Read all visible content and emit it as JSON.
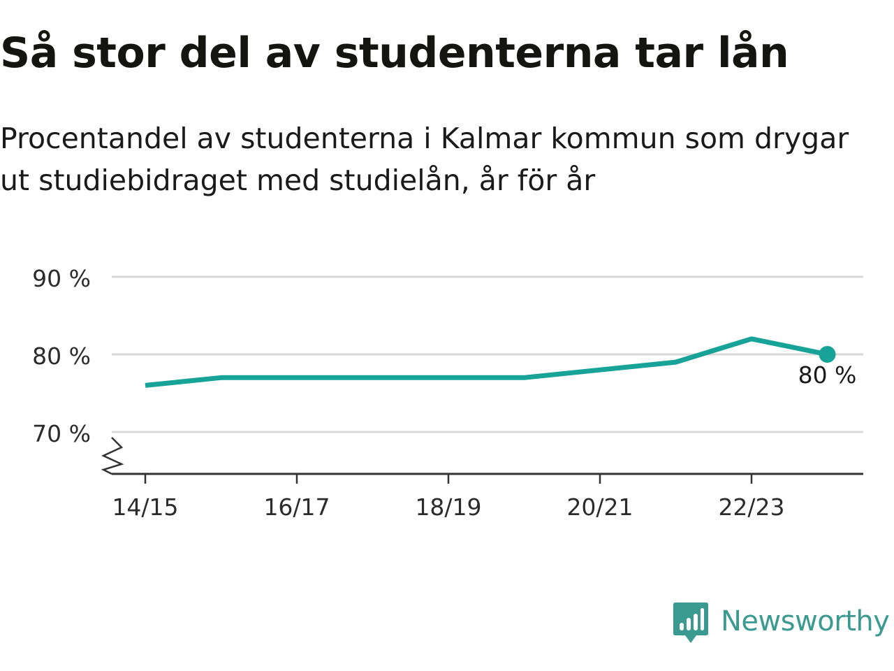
{
  "header": {
    "title": "Så stor del av studenterna tar lån",
    "subtitle": "Procentandel av studenterna i Kalmar kommun som drygar ut studiebidraget med studielån, år för år"
  },
  "chart_data": {
    "type": "line",
    "title": "Så stor del av studenterna tar lån",
    "subtitle": "Procentandel av studenterna i Kalmar kommun som drygar ut studiebidraget med studielån, år för år",
    "x": [
      "14/15",
      "15/16",
      "16/17",
      "17/18",
      "18/19",
      "19/20",
      "20/21",
      "21/22",
      "22/23",
      "23/24"
    ],
    "series": [
      {
        "values": [
          76,
          77,
          77,
          77,
          77,
          77,
          78,
          79,
          82,
          80
        ]
      }
    ],
    "x_tick_labels": [
      "14/15",
      "16/17",
      "18/19",
      "20/21",
      "22/23"
    ],
    "y_ticks": [
      70,
      80,
      90
    ],
    "y_tick_labels": [
      "70 %",
      "80 %",
      "90 %"
    ],
    "ylim": [
      65,
      90
    ],
    "y_axis_break": true,
    "grid": true,
    "legend": "none",
    "last_point_label": "80 %",
    "colors": {
      "line": "#17a398",
      "grid": "#d9d9d9",
      "axis": "#333333"
    }
  },
  "brand": {
    "name": "Newsworthy",
    "icon": "newsworthy-logo-icon",
    "color": "#3a9a8f"
  }
}
